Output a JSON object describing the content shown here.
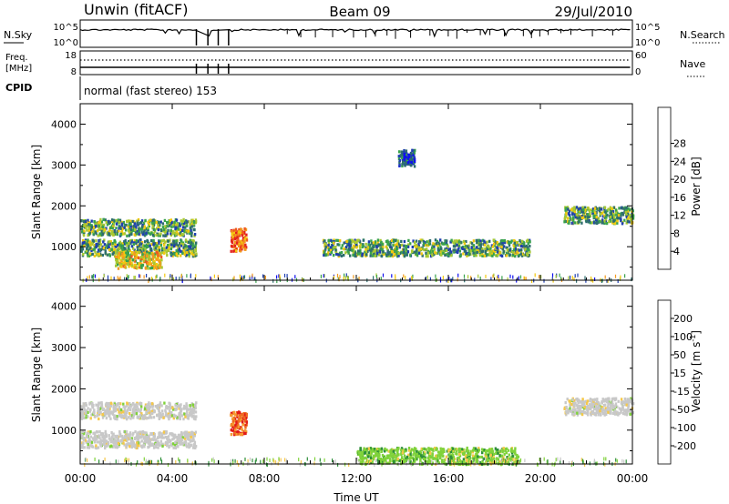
{
  "header": {
    "station": "Unwin (fitACF)",
    "beam": "Beam 09",
    "date": "29/Jul/2010"
  },
  "noise_panel": {
    "left_label": "N.Sky",
    "right_label": "N.Search",
    "left_ticks": [
      "10^5",
      "10^0"
    ],
    "right_ticks": [
      "10^5",
      "10^0"
    ]
  },
  "freq_panel": {
    "left_label_1": "Freq.",
    "left_label_2": "[MHz]",
    "right_label": "Nave",
    "left_ticks": [
      "18",
      "8"
    ],
    "right_ticks": [
      "60",
      "0"
    ]
  },
  "cpid": {
    "label": "CPID",
    "text": "normal (fast stereo) 153"
  },
  "chart_data": [
    {
      "type": "heatmap",
      "title": "",
      "quantity": "Power",
      "ylabel": "Slant Range [km]",
      "xlabel": "",
      "yticks": [
        1000,
        2000,
        3000,
        4000
      ],
      "ylim": [
        180,
        4500
      ],
      "colorbar": {
        "label": "Power [dB]",
        "ticks": [
          "4",
          "8",
          "12",
          "16",
          "20",
          "24",
          "28"
        ],
        "colors": [
          "#1010ee",
          "#1f3fb0",
          "#2e6e6e",
          "#39a24d",
          "#a8c832",
          "#f2c80f",
          "#f39a1f",
          "#ee5a1e",
          "#e4221e"
        ]
      },
      "echo_regions": [
        {
          "t_start": 0.0,
          "t_end": 5.0,
          "range_km": 1500,
          "level": "medium"
        },
        {
          "t_start": 0.0,
          "t_end": 5.0,
          "range_km": 1000,
          "level": "medium"
        },
        {
          "t_start": 1.5,
          "t_end": 3.5,
          "range_km": 700,
          "level": "high"
        },
        {
          "t_start": 6.5,
          "t_end": 7.2,
          "range_km": 1200,
          "level": "very high"
        },
        {
          "t_start": 10.5,
          "t_end": 19.5,
          "range_km": 1000,
          "level": "medium"
        },
        {
          "t_start": 13.8,
          "t_end": 14.5,
          "range_km": 3200,
          "level": "low"
        },
        {
          "t_start": 21.0,
          "t_end": 24.0,
          "range_km": 1800,
          "level": "medium"
        }
      ]
    },
    {
      "type": "heatmap",
      "title": "",
      "quantity": "Velocity",
      "ylabel": "Slant Range [km]",
      "xlabel": "Time UT",
      "yticks": [
        1000,
        2000,
        3000,
        4000
      ],
      "ylim": [
        180,
        4500
      ],
      "xticks": [
        "00:00",
        "04:00",
        "08:00",
        "12:00",
        "16:00",
        "20:00",
        "00:00"
      ],
      "colorbar": {
        "label": "Velocity [m s^-1]",
        "ticks": [
          "200",
          "100",
          "50",
          "15",
          "-15",
          "-50",
          "-100",
          "-200"
        ],
        "colors": [
          "#2038d8",
          "#2e9a6e",
          "#2e8f3a",
          "#7fd23a",
          "#c8c8c8",
          "#f5c84a",
          "#f59a30",
          "#ee6a20",
          "#e21a1a"
        ]
      },
      "echo_regions": [
        {
          "t_start": 0.0,
          "t_end": 5.0,
          "range_km": 1500,
          "velocity": "~0 (ground scatter)"
        },
        {
          "t_start": 0.0,
          "t_end": 5.0,
          "range_km": 800,
          "velocity": "~0 (ground scatter)"
        },
        {
          "t_start": 6.5,
          "t_end": 7.2,
          "range_km": 1200,
          "velocity": "-100 to -200"
        },
        {
          "t_start": 12.0,
          "t_end": 19.0,
          "range_km": 400,
          "velocity": "15 to 50"
        },
        {
          "t_start": 21.0,
          "t_end": 24.0,
          "range_km": 1600,
          "velocity": "~0 (ground scatter)"
        }
      ]
    }
  ]
}
